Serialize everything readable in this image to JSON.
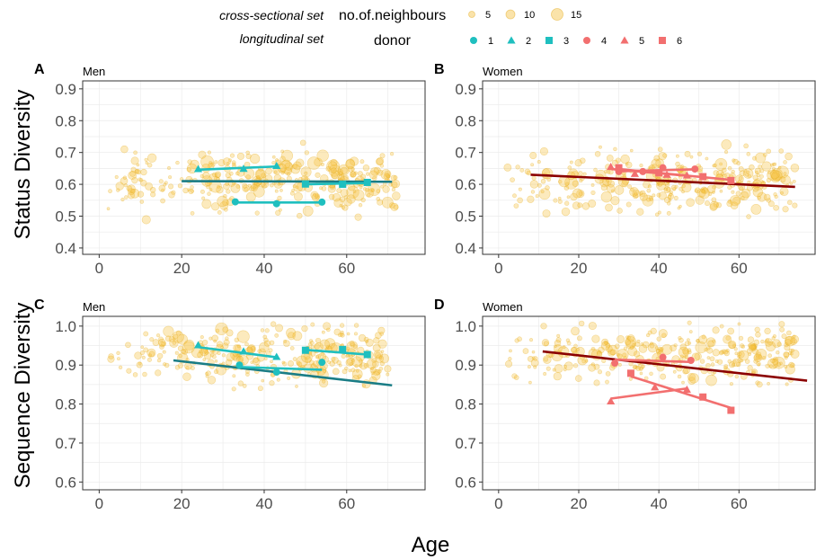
{
  "legend": {
    "cross_label": "cross-sectional set",
    "size_title": "no.of.neighbours",
    "size_items": [
      {
        "label": "5",
        "size": 5
      },
      {
        "label": "10",
        "size": 10
      },
      {
        "label": "15",
        "size": 15
      }
    ],
    "long_label": "longitudinal set",
    "donor_title": "donor",
    "donor_items": [
      {
        "label": "1",
        "shape": "circle",
        "color": "#1fbfbf"
      },
      {
        "label": "2",
        "shape": "triangle",
        "color": "#1fbfbf"
      },
      {
        "label": "3",
        "shape": "square",
        "color": "#1fbfbf"
      },
      {
        "label": "4",
        "shape": "circle",
        "color": "#f26f6f"
      },
      {
        "label": "5",
        "shape": "triangle",
        "color": "#f26f6f"
      },
      {
        "label": "6",
        "shape": "square",
        "color": "#f26f6f"
      }
    ]
  },
  "row_labels": [
    "Status Diversity",
    "Sequence Diversity"
  ],
  "x_title": "Age",
  "colors": {
    "cloud_fill": "#f5c242",
    "cloud_stroke": "#e3a91a",
    "men_trend": "#1a7d86",
    "women_trend": "#8b0000",
    "men_donor": "#1fbfbf",
    "women_donor": "#f26f6f",
    "grid": "#ebebeb",
    "panel_border": "#333333"
  },
  "chart_data": [
    {
      "type": "scatter",
      "panel": "A",
      "subtitle": "Men",
      "row": 0,
      "col": 0,
      "xlim": [
        -4,
        79
      ],
      "ylim": [
        0.38,
        0.925
      ],
      "xticks": [
        0,
        20,
        40,
        60
      ],
      "xtick_labels": [
        "0",
        "20",
        "40",
        "60"
      ],
      "yticks": [
        0.4,
        0.5,
        0.6,
        0.7,
        0.8,
        0.9
      ],
      "ytick_labels": [
        "0.4",
        "0.5",
        "0.6",
        "0.7",
        "0.8",
        "0.9"
      ],
      "cloud": {
        "x_range": [
          2,
          72
        ],
        "y_center": 0.61,
        "y_spread": 0.045,
        "count": 340,
        "seed": 11
      },
      "trend": {
        "x": [
          20,
          71
        ],
        "y": [
          0.61,
          0.608
        ]
      },
      "donors": [
        {
          "donor": "1",
          "x": [
            33,
            43,
            54
          ],
          "y": [
            0.545,
            0.539,
            0.544
          ],
          "fit": {
            "x": [
              33,
              54
            ],
            "y": [
              0.543,
              0.543
            ]
          }
        },
        {
          "donor": "2",
          "x": [
            24,
            35,
            43
          ],
          "y": [
            0.648,
            0.649,
            0.658
          ],
          "fit": {
            "x": [
              24,
              43
            ],
            "y": [
              0.646,
              0.656
            ]
          }
        },
        {
          "donor": "3",
          "x": [
            50,
            59,
            65
          ],
          "y": [
            0.601,
            0.6,
            0.606
          ],
          "fit": {
            "x": [
              50,
              65
            ],
            "y": [
              0.6,
              0.604
            ]
          }
        }
      ]
    },
    {
      "type": "scatter",
      "panel": "B",
      "subtitle": "Women",
      "row": 0,
      "col": 1,
      "xlim": [
        -4,
        79
      ],
      "ylim": [
        0.38,
        0.925
      ],
      "xticks": [
        0,
        20,
        40,
        60
      ],
      "xtick_labels": [
        "0",
        "20",
        "40",
        "60"
      ],
      "yticks": [
        0.4,
        0.5,
        0.6,
        0.7,
        0.8,
        0.9
      ],
      "ytick_labels": [
        "0.4",
        "0.5",
        "0.6",
        "0.7",
        "0.8",
        "0.9"
      ],
      "cloud": {
        "x_range": [
          1,
          74
        ],
        "y_center": 0.61,
        "y_spread": 0.045,
        "count": 340,
        "seed": 23
      },
      "trend": {
        "x": [
          8,
          74
        ],
        "y": [
          0.63,
          0.592
        ]
      },
      "donors": [
        {
          "donor": "4",
          "x": [
            30,
            36,
            41,
            49
          ],
          "y": [
            0.64,
            0.64,
            0.652,
            0.648
          ],
          "fit": {
            "x": [
              30,
              49
            ],
            "y": [
              0.641,
              0.647
            ]
          }
        },
        {
          "donor": "5",
          "x": [
            28,
            34,
            42,
            47
          ],
          "y": [
            0.655,
            0.633,
            0.63,
            0.628
          ],
          "fit": {
            "x": [
              28,
              47
            ],
            "y": [
              0.648,
              0.627
            ]
          }
        },
        {
          "donor": "6",
          "x": [
            30,
            40,
            51,
            58
          ],
          "y": [
            0.652,
            0.636,
            0.624,
            0.612
          ],
          "fit": {
            "x": [
              30,
              58
            ],
            "y": [
              0.648,
              0.614
            ]
          }
        }
      ]
    },
    {
      "type": "scatter",
      "panel": "C",
      "subtitle": "Men",
      "row": 1,
      "col": 0,
      "xlim": [
        -4,
        79
      ],
      "ylim": [
        0.58,
        1.025
      ],
      "xticks": [
        0,
        20,
        40,
        60
      ],
      "xtick_labels": [
        "0",
        "20",
        "40",
        "60"
      ],
      "yticks": [
        0.6,
        0.7,
        0.8,
        0.9,
        1.0
      ],
      "ytick_labels": [
        "0.6",
        "0.7",
        "0.8",
        "0.9",
        "1.0"
      ],
      "cloud": {
        "x_range": [
          2,
          70
        ],
        "y_center": 0.925,
        "y_spread": 0.035,
        "count": 330,
        "seed": 37
      },
      "trend": {
        "x": [
          18,
          71
        ],
        "y": [
          0.912,
          0.848
        ]
      },
      "donors": [
        {
          "donor": "1",
          "x": [
            34,
            43,
            54
          ],
          "y": [
            0.9,
            0.882,
            0.907
          ],
          "fit": {
            "x": [
              34,
              54
            ],
            "y": [
              0.895,
              0.888
            ]
          }
        },
        {
          "donor": "2",
          "x": [
            24,
            35,
            43
          ],
          "y": [
            0.951,
            0.935,
            0.921
          ],
          "fit": {
            "x": [
              24,
              43
            ],
            "y": [
              0.946,
              0.92
            ]
          }
        },
        {
          "donor": "3",
          "x": [
            50,
            59,
            65
          ],
          "y": [
            0.938,
            0.94,
            0.927
          ],
          "fit": {
            "x": [
              50,
              65
            ],
            "y": [
              0.939,
              0.927
            ]
          }
        }
      ]
    },
    {
      "type": "scatter",
      "panel": "D",
      "subtitle": "Women",
      "row": 1,
      "col": 1,
      "xlim": [
        -4,
        79
      ],
      "ylim": [
        0.58,
        1.025
      ],
      "xticks": [
        0,
        20,
        40,
        60
      ],
      "xtick_labels": [
        "0",
        "20",
        "40",
        "60"
      ],
      "yticks": [
        0.6,
        0.7,
        0.8,
        0.9,
        1.0
      ],
      "ytick_labels": [
        "0.6",
        "0.7",
        "0.8",
        "0.9",
        "1.0"
      ],
      "cloud": {
        "x_range": [
          1,
          74
        ],
        "y_center": 0.925,
        "y_spread": 0.035,
        "count": 340,
        "seed": 53
      },
      "trend": {
        "x": [
          11,
          77
        ],
        "y": [
          0.935,
          0.86
        ]
      },
      "donors": [
        {
          "donor": "4",
          "x": [
            29,
            41,
            48
          ],
          "y": [
            0.905,
            0.92,
            0.912
          ],
          "fit": {
            "x": [
              29,
              48
            ],
            "y": [
              0.914,
              0.908
            ]
          }
        },
        {
          "donor": "5",
          "x": [
            28,
            39,
            47
          ],
          "y": [
            0.807,
            0.843,
            0.837
          ],
          "fit": {
            "x": [
              28,
              47
            ],
            "y": [
              0.814,
              0.84
            ]
          }
        },
        {
          "donor": "6",
          "x": [
            33,
            51,
            58
          ],
          "y": [
            0.879,
            0.818,
            0.784
          ],
          "fit": {
            "x": [
              33,
              58
            ],
            "y": [
              0.871,
              0.79
            ]
          }
        }
      ]
    }
  ]
}
